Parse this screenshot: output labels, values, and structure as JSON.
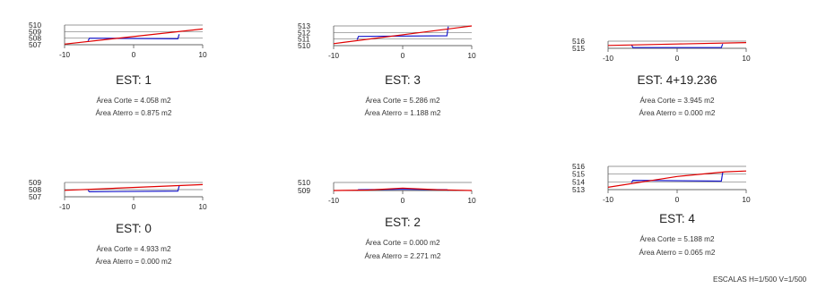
{
  "sections": [
    {
      "id": "s1",
      "label": "EST: 1",
      "corte": "Área Corte = 4.058 m2",
      "aterro": "Área Aterro = 0.875 m2",
      "y_ticks": [
        "510",
        "509",
        "508",
        "507"
      ],
      "x_ticks": [
        "-10",
        "0",
        "10"
      ],
      "x_range": [
        -10,
        10
      ],
      "y_range": [
        507,
        510
      ],
      "terrain": [
        [
          -10,
          507.1
        ],
        [
          10,
          509.4
        ]
      ],
      "platform": [
        [
          -6.6,
          507.6
        ],
        [
          -6.4,
          508.0
        ],
        [
          6.4,
          507.9
        ],
        [
          6.6,
          508.6
        ]
      ]
    },
    {
      "id": "s3",
      "label": "EST: 3",
      "corte": "Área Corte = 5.286 m2",
      "aterro": "Área Aterro = 1.188 m2",
      "y_ticks": [
        "513",
        "512",
        "511",
        "510"
      ],
      "x_ticks": [
        "-10",
        "0",
        "10"
      ],
      "x_range": [
        -10,
        10
      ],
      "y_range": [
        510,
        513
      ],
      "terrain": [
        [
          -10,
          510.3
        ],
        [
          10,
          513.0
        ]
      ],
      "platform": [
        [
          -6.6,
          510.9
        ],
        [
          -6.4,
          511.4
        ],
        [
          6.4,
          511.5
        ],
        [
          6.6,
          512.9
        ]
      ]
    },
    {
      "id": "s4p",
      "label": "EST: 4+19.236",
      "corte": "Área Corte = 3.945 m2",
      "aterro": "Área Aterro = 0.000 m2",
      "y_ticks": [
        "516",
        "515"
      ],
      "x_ticks": [
        "-10",
        "0",
        "10"
      ],
      "x_range": [
        -10,
        10
      ],
      "y_range": [
        515,
        516
      ],
      "terrain": [
        [
          -10,
          515.4
        ],
        [
          0,
          515.6
        ],
        [
          10,
          515.8
        ]
      ],
      "platform": [
        [
          -6.6,
          515.5
        ],
        [
          -6.4,
          515.1
        ],
        [
          6.4,
          515.1
        ],
        [
          6.6,
          515.6
        ]
      ]
    },
    {
      "id": "s0",
      "label": "EST: 0",
      "corte": "Área Corte = 4.933 m2",
      "aterro": "Área Aterro = 0.000 m2",
      "y_ticks": [
        "509",
        "508",
        "507"
      ],
      "x_ticks": [
        "-10",
        "0",
        "10"
      ],
      "x_range": [
        -10,
        10
      ],
      "y_range": [
        507,
        509
      ],
      "terrain": [
        [
          -10,
          507.9
        ],
        [
          10,
          508.7
        ]
      ],
      "platform": [
        [
          -6.6,
          507.9
        ],
        [
          -6.4,
          507.7
        ],
        [
          6.4,
          507.8
        ],
        [
          6.6,
          508.5
        ]
      ]
    },
    {
      "id": "s2",
      "label": "EST: 2",
      "corte": "Área Corte = 0.000 m2",
      "aterro": "Área Aterro = 2.271 m2",
      "y_ticks": [
        "510",
        "509"
      ],
      "x_ticks": [
        "-10",
        "0",
        "10"
      ],
      "x_range": [
        -10,
        10
      ],
      "y_range": [
        509,
        510
      ],
      "terrain": [
        [
          -10,
          509.0
        ],
        [
          -5,
          509.05
        ],
        [
          0,
          509.3
        ],
        [
          5,
          509.1
        ],
        [
          10,
          509.0
        ]
      ],
      "platform": [
        [
          -6.6,
          509.0
        ],
        [
          -6.4,
          509.1
        ],
        [
          0,
          509.15
        ],
        [
          6.4,
          509.1
        ],
        [
          6.6,
          509.0
        ]
      ]
    },
    {
      "id": "s4",
      "label": "EST: 4",
      "corte": "Área Corte = 5.188 m2",
      "aterro": "Área Aterro = 0.065 m2",
      "y_ticks": [
        "516",
        "515",
        "514",
        "513"
      ],
      "x_ticks": [
        "-10",
        "0",
        "10"
      ],
      "x_range": [
        -10,
        10
      ],
      "y_range": [
        513,
        516
      ],
      "terrain": [
        [
          -10,
          513.3
        ],
        [
          0,
          514.7
        ],
        [
          7,
          515.3
        ],
        [
          10,
          515.4
        ]
      ],
      "platform": [
        [
          -6.6,
          513.9
        ],
        [
          -6.4,
          514.2
        ],
        [
          6.4,
          514.1
        ],
        [
          6.6,
          515.2
        ]
      ]
    }
  ],
  "scale_text": "ESCALAS H=1/500 V=1/500",
  "colors": {
    "terrain": "#e00000",
    "platform": "#1a1acc",
    "axis": "#555555"
  }
}
